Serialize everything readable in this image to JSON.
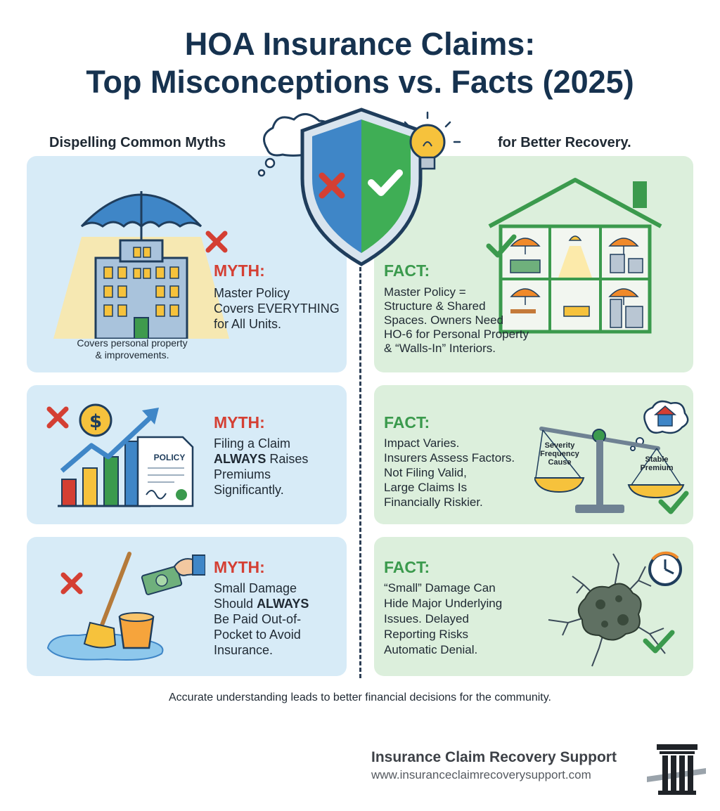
{
  "header": {
    "title_line1": "HOA Insurance Claims:",
    "title_line2": "Top Misconceptions vs. Facts (2025)",
    "left_subhead": "Dispelling Common Myths",
    "right_subhead": "for Better Recovery."
  },
  "rows": [
    {
      "myth": {
        "label": "MYTH:",
        "lines": [
          "Master Policy",
          "Covers EVERYTHING",
          "for All Units."
        ],
        "caption_lines": [
          "Covers personal property",
          "& improvements."
        ]
      },
      "fact": {
        "label": "FACT:",
        "lines": [
          "Master Policy =",
          "Structure & Shared",
          "Spaces. Owners Need",
          "HO-6 for Personal Property",
          "& “Walls-In” Interiors."
        ]
      }
    },
    {
      "myth": {
        "label": "MYTH:",
        "line1": "Filing a Claim",
        "emph": "ALWAYS",
        "line2_rest": " Raises",
        "line3": "Premiums",
        "line4": "Significantly.",
        "policy_label": "POLICY"
      },
      "fact": {
        "label": "FACT:",
        "lines": [
          "Impact Varies.",
          "Insurers Assess Factors.",
          "Not Filing Valid,",
          "Large Claims Is",
          "Financially Riskier."
        ],
        "scale_left_lines": [
          "Severity",
          "Frequency",
          "Cause"
        ],
        "scale_right_lines": [
          "Stable",
          "Premium"
        ]
      }
    },
    {
      "myth": {
        "label": "MYTH:",
        "line1": "Small Damage",
        "line2_pre": "Should ",
        "emph": "ALWAYS",
        "line3": "Be Paid Out-of-",
        "line4": "Pocket to Avoid",
        "line5": "Insurance."
      },
      "fact": {
        "label": "FACT:",
        "lines": [
          "“Small” Damage Can",
          "Hide Major Underlying",
          "Issues. Delayed",
          "Reporting Risks",
          "Automatic Denial."
        ]
      }
    }
  ],
  "footer": {
    "note": "Accurate understanding leads to better financial decisions for the community.",
    "brand_name": "Insurance Claim Recovery Support",
    "brand_url": "www.insuranceclaimrecoverysupport.com"
  },
  "colors": {
    "myth_panel": "#d7ebf7",
    "fact_panel": "#dcefdc",
    "myth_red": "#d43f33",
    "fact_green": "#3b9a4d",
    "title_navy": "#16324f"
  },
  "icons": {
    "shield": "shield-split-icon",
    "x_mark": "x-mark-icon",
    "check_mark": "check-mark-icon"
  }
}
